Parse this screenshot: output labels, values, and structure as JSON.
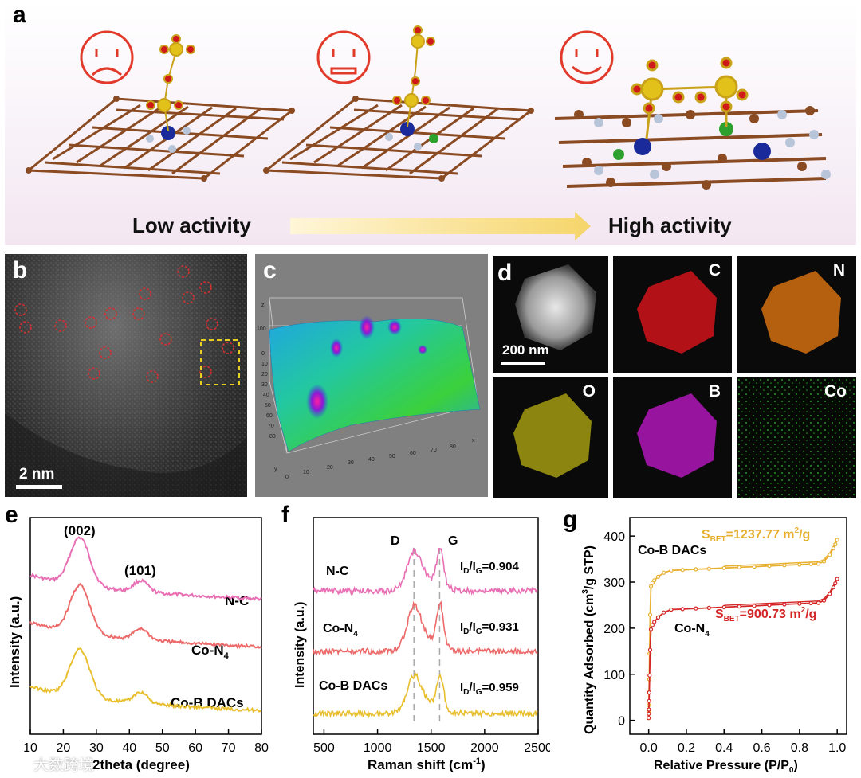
{
  "panel_a": {
    "letter": "a",
    "left_label": "Low activity",
    "right_label": "High activity"
  },
  "panel_b": {
    "letter": "b",
    "scalebar": "2 nm"
  },
  "panel_c": {
    "letter": "c",
    "z_axis": "z",
    "z_ticks": [
      "100",
      "0",
      "10",
      "20",
      "30",
      "40",
      "50",
      "60",
      "70",
      "80"
    ],
    "y_axis": "y",
    "x_axis": "x",
    "x_ticks": [
      "0",
      "10",
      "20",
      "30",
      "40",
      "50",
      "60",
      "70",
      "80"
    ]
  },
  "panel_d": {
    "letter": "d",
    "scalebar": "200 nm",
    "maps": [
      {
        "label": "C",
        "color": "#e0141a"
      },
      {
        "label": "N",
        "color": "#e07a12"
      },
      {
        "label": "O",
        "color": "#c9c21a"
      },
      {
        "label": "B",
        "color": "#c21fc9"
      },
      {
        "label": "Co",
        "color": "#1fb52a"
      }
    ]
  },
  "chart_data": [
    {
      "type": "line",
      "panel": "e",
      "xlabel": "2theta (degree)",
      "ylabel": "Intensity (a.u.)",
      "xlim": [
        10,
        80
      ],
      "x_ticks": [
        "10",
        "20",
        "30",
        "40",
        "50",
        "60",
        "70",
        "80"
      ],
      "annotations": [
        "(002)",
        "(101)"
      ],
      "series": [
        {
          "name": "N-C",
          "color": "#e86fb4",
          "peaks": [
            25,
            43.5
          ],
          "offset": 2
        },
        {
          "name": "Co-N",
          "subscript": "4",
          "color": "#ec6a6a",
          "peaks": [
            25,
            43.5
          ],
          "offset": 1
        },
        {
          "name": "Co-B DACs",
          "color": "#e8bf2e",
          "peaks": [
            25,
            43.5
          ],
          "offset": 0
        }
      ]
    },
    {
      "type": "line",
      "panel": "f",
      "xlabel": "Raman shift (cm",
      "xlabel_sup": "-1",
      "xlabel_tail": ")",
      "ylabel": "Intensity (a.u.)",
      "xlim": [
        400,
        2500
      ],
      "x_ticks": [
        "500",
        "1000",
        "1500",
        "2000",
        "2500"
      ],
      "band_labels": [
        "D",
        "G"
      ],
      "band_positions": [
        1340,
        1580
      ],
      "series": [
        {
          "name": "N-C",
          "color": "#e86fb4",
          "ratio": "0.904",
          "offset": 2
        },
        {
          "name": "Co-N",
          "subscript": "4",
          "color": "#ec6a6a",
          "ratio": "0.931",
          "offset": 1
        },
        {
          "name": "Co-B DACs",
          "color": "#e8bf2e",
          "ratio": "0.959",
          "offset": 0
        }
      ],
      "ratio_prefix": "I",
      "ratio_sub_d": "D",
      "ratio_mid": "/I",
      "ratio_sub_g": "G",
      "ratio_eq": "="
    },
    {
      "type": "line",
      "panel": "g",
      "xlabel": "Relative Pressure (P/P",
      "xlabel_sub": "0",
      "xlabel_tail": ")",
      "ylabel": "Quantity Adsorbed (cm",
      "ylabel_sup": "3",
      "ylabel_tail": "/g STP)",
      "xlim": [
        -0.1,
        1.05
      ],
      "ylim": [
        -30,
        440
      ],
      "x_ticks": [
        "0.0",
        "0.2",
        "0.4",
        "0.6",
        "0.8",
        "1.0"
      ],
      "y_ticks": [
        "0",
        "100",
        "200",
        "300",
        "400"
      ],
      "series": [
        {
          "name": "Co-B DACs",
          "color": "#e8b030",
          "plateau": 340,
          "end": 390,
          "bet_prefix": "S",
          "bet_sub": "BET",
          "bet_value": "=1237.77 m",
          "bet_sup": "2",
          "bet_tail": "/g"
        },
        {
          "name": "Co-N",
          "subscript": "4",
          "color": "#d42626",
          "plateau": 255,
          "end": 305,
          "bet_prefix": "S",
          "bet_sub": "BET",
          "bet_value": "=900.73 m",
          "bet_sup": "2",
          "bet_tail": "/g"
        }
      ]
    }
  ],
  "panel_letters": {
    "e": "e",
    "f": "f",
    "g": "g"
  },
  "watermark": "大数跨境"
}
